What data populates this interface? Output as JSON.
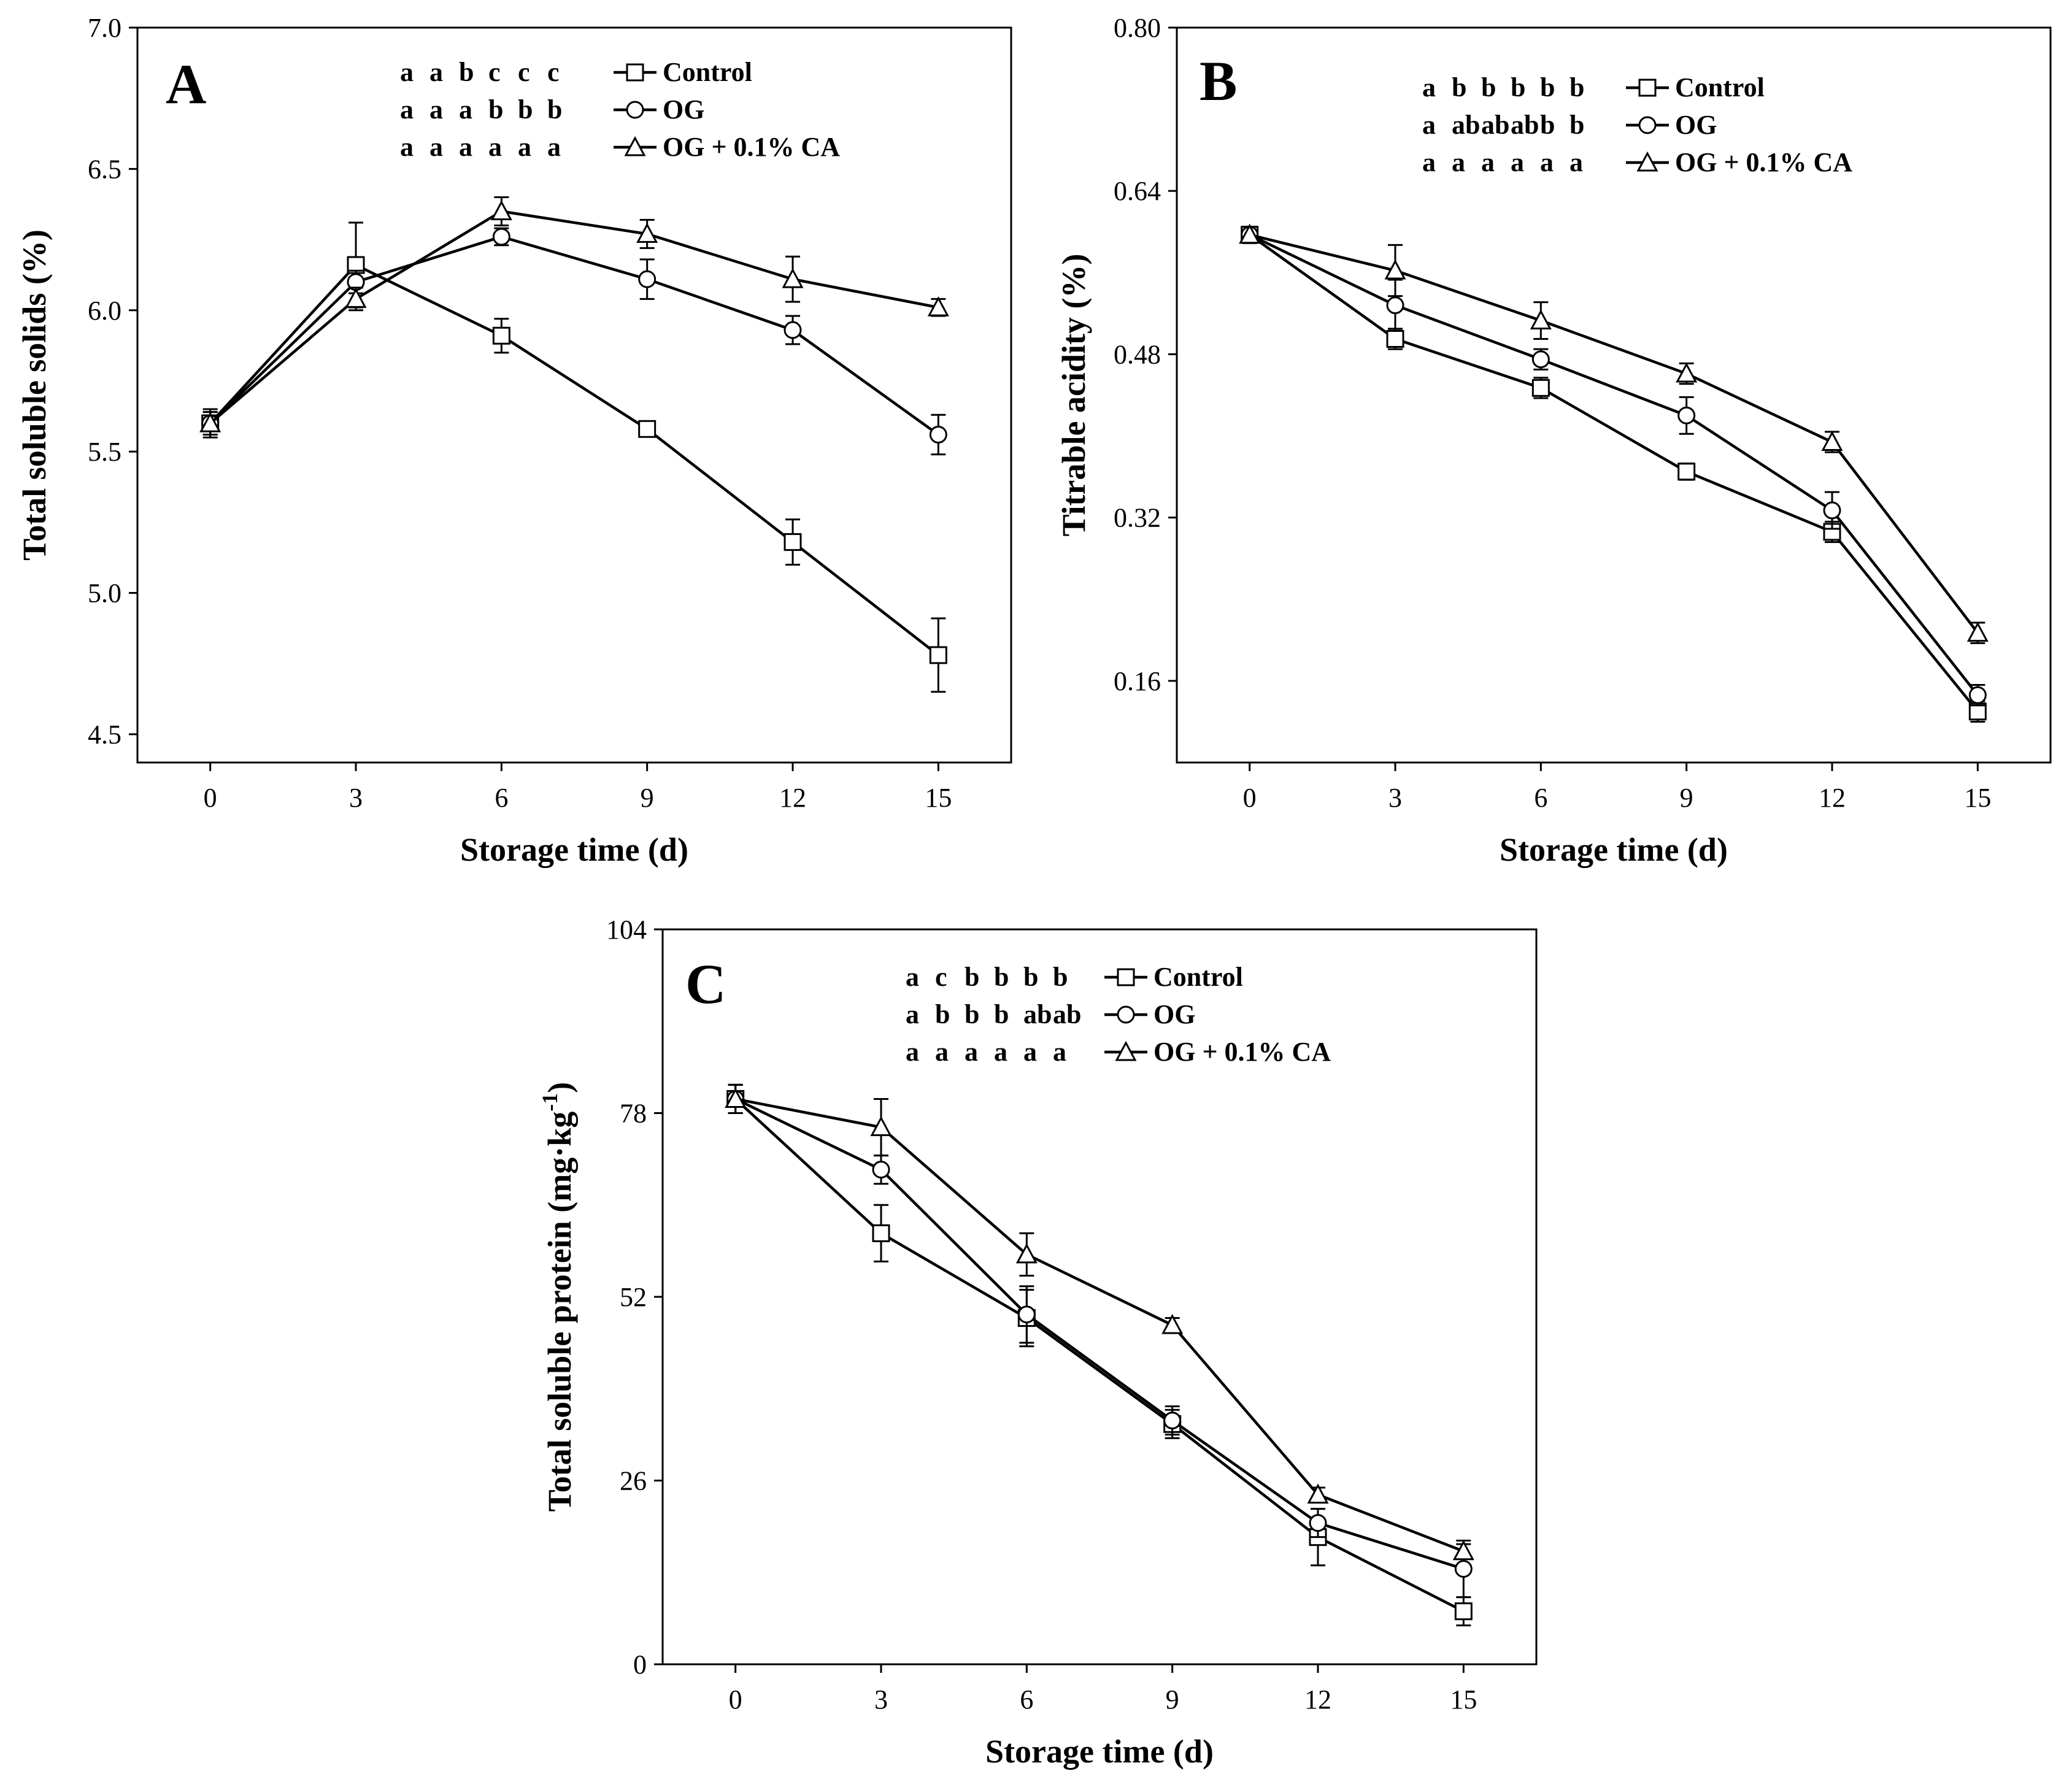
{
  "chart_data": [
    {
      "type": "line",
      "panel_label": "A",
      "xlabel": "Storage time (d)",
      "ylabel": "Total soluble solids (%)",
      "x": [
        0,
        3,
        6,
        9,
        12,
        15
      ],
      "xlim": [
        -1.5,
        16.5
      ],
      "ylim": [
        4.4,
        7.0
      ],
      "yticks": [
        4.5,
        5.0,
        5.5,
        6.0,
        6.5,
        7.0
      ],
      "ytick_labels": [
        "4.5",
        "5.0",
        "5.5",
        "6.0",
        "6.5",
        "7.0"
      ],
      "series": [
        {
          "name": "Control",
          "marker": "square",
          "values": [
            5.6,
            6.16,
            5.91,
            5.58,
            5.18,
            4.78
          ],
          "errors": [
            0.05,
            0.15,
            0.06,
            0.02,
            0.08,
            0.13
          ],
          "significance": "a a b c c c"
        },
        {
          "name": "OG",
          "marker": "circle",
          "values": [
            5.6,
            6.1,
            6.26,
            6.11,
            5.93,
            5.56
          ],
          "errors": [
            0.04,
            0.04,
            0.03,
            0.07,
            0.05,
            0.07
          ],
          "significance": "a a a b b b"
        },
        {
          "name": "OG + 0.1% CA",
          "marker": "triangle",
          "values": [
            5.6,
            6.04,
            6.35,
            6.27,
            6.11,
            6.01
          ],
          "errors": [
            0.04,
            0.04,
            0.05,
            0.05,
            0.08,
            0.03
          ],
          "significance": "a a a a a a"
        }
      ]
    },
    {
      "type": "line",
      "panel_label": "B",
      "xlabel": "Storage time (d)",
      "ylabel": "Titrable acidity (%)",
      "x": [
        0,
        3,
        6,
        9,
        12,
        15
      ],
      "xlim": [
        -1.5,
        16.5
      ],
      "ylim": [
        0.08,
        0.8
      ],
      "yticks": [
        0.16,
        0.32,
        0.48,
        0.64,
        0.8
      ],
      "ytick_labels": [
        "0.16",
        "0.32",
        "0.48",
        "0.64",
        "0.80"
      ],
      "series": [
        {
          "name": "Control",
          "marker": "square",
          "values": [
            0.597,
            0.495,
            0.447,
            0.365,
            0.306,
            0.13
          ],
          "errors": [
            0.008,
            0.01,
            0.01,
            0.008,
            0.01,
            0.01
          ],
          "significance": "a b b b b b"
        },
        {
          "name": "OG",
          "marker": "circle",
          "values": [
            0.597,
            0.528,
            0.475,
            0.42,
            0.327,
            0.146
          ],
          "errors": [
            0.008,
            0.025,
            0.01,
            0.018,
            0.018,
            0.01
          ],
          "significance": "a ab ab ab b b"
        },
        {
          "name": "OG + 0.1% CA",
          "marker": "triangle",
          "values": [
            0.597,
            0.562,
            0.513,
            0.461,
            0.394,
            0.207
          ],
          "errors": [
            0.008,
            0.025,
            0.018,
            0.01,
            0.01,
            0.01
          ],
          "significance": "a a a a a a"
        }
      ]
    },
    {
      "type": "line",
      "panel_label": "C",
      "xlabel": "Storage time (d)",
      "ylabel": "Total soluble protein (mg·kg",
      "ylabel_superscript": "-1",
      "ylabel_suffix": ")",
      "x": [
        0,
        3,
        6,
        9,
        12,
        15
      ],
      "xlim": [
        -1.5,
        16.5
      ],
      "ylim": [
        0,
        104
      ],
      "yticks": [
        0,
        26,
        52,
        78,
        104
      ],
      "ytick_labels": [
        "0",
        "26",
        "52",
        "78",
        "104"
      ],
      "series": [
        {
          "name": "Control",
          "marker": "square",
          "values": [
            80,
            61,
            49,
            34,
            18,
            7.5
          ],
          "errors": [
            2,
            4,
            4,
            2,
            4,
            2
          ],
          "significance": "a c b b b b"
        },
        {
          "name": "OG",
          "marker": "circle",
          "values": [
            80,
            70,
            49.5,
            34.5,
            20,
            13.5
          ],
          "errors": [
            2,
            2,
            4,
            2,
            2,
            4
          ],
          "significance": "a b b b ab ab"
        },
        {
          "name": "OG + 0.1% CA",
          "marker": "triangle",
          "values": [
            80,
            76,
            58,
            48,
            24,
            16
          ],
          "errors": [
            2,
            4,
            3,
            1,
            1,
            1
          ],
          "significance": "a a a a a a"
        }
      ]
    }
  ],
  "xtick_labels": [
    "0",
    "3",
    "6",
    "9",
    "12",
    "15"
  ]
}
